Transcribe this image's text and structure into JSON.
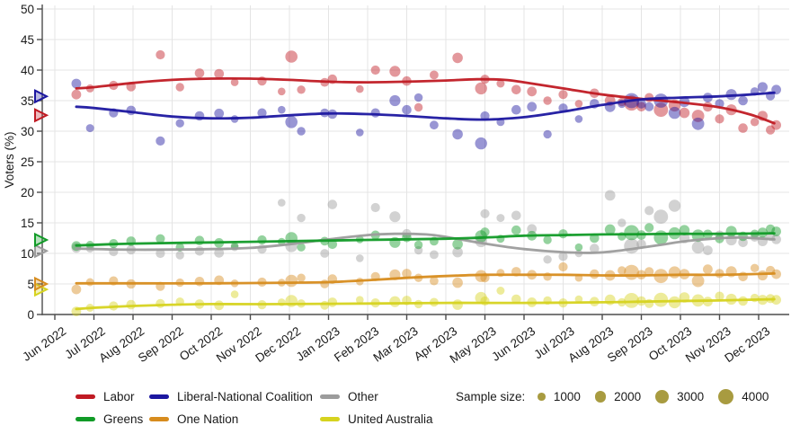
{
  "chart_data": {
    "type": "scatter",
    "title": "",
    "ylabel": "Voters (%)",
    "ylim": [
      0,
      50
    ],
    "yticks": [
      0,
      5,
      10,
      15,
      20,
      25,
      30,
      35,
      40,
      45,
      50
    ],
    "x_tick_labels": [
      "Jun 2022",
      "Jul 2022",
      "Aug 2022",
      "Sep 2022",
      "Oct 2022",
      "Nov 2022",
      "Dec 2022",
      "Jan 2023",
      "Feb 2023",
      "Mar 2023",
      "Apr 2023",
      "May 2023",
      "Jun 2023",
      "Jul 2023",
      "Aug 2023",
      "Sep 2023",
      "Oct 2023",
      "Nov 2023",
      "Dec 2023"
    ],
    "grid": true,
    "legend_position": "bottom",
    "parties": [
      {
        "key": "oth",
        "name": "Other",
        "color": "#9c9c9c",
        "election_2022": 10.4,
        "trend": [
          [
            0.55,
            10.8
          ],
          [
            2,
            10.6
          ],
          [
            4,
            10.7
          ],
          [
            5,
            10.9
          ],
          [
            6,
            11.5
          ],
          [
            7,
            12.3
          ],
          [
            8,
            13.0
          ],
          [
            8.7,
            13.2
          ],
          [
            9.5,
            13.1
          ],
          [
            10,
            12.7
          ],
          [
            11,
            11.6
          ],
          [
            12,
            10.7
          ],
          [
            13,
            10.2
          ],
          [
            13.8,
            10.1
          ],
          [
            14.5,
            10.5
          ],
          [
            15.5,
            11.4
          ],
          [
            16,
            11.9
          ],
          [
            16.8,
            12.4
          ],
          [
            17.5,
            12.6
          ],
          [
            18.4,
            12.3
          ]
        ]
      },
      {
        "key": "uap",
        "name": "United Australia",
        "color": "#d6d31f",
        "election_2022": 4.1,
        "trend": [
          [
            0.55,
            0.9
          ],
          [
            1,
            1.1
          ],
          [
            2,
            1.4
          ],
          [
            3,
            1.6
          ],
          [
            4,
            1.7
          ],
          [
            6,
            1.7
          ],
          [
            8,
            1.8
          ],
          [
            10,
            1.9
          ],
          [
            12,
            1.9
          ],
          [
            14,
            2.0
          ],
          [
            15,
            2.1
          ],
          [
            16,
            2.2
          ],
          [
            17,
            2.3
          ],
          [
            18.4,
            2.5
          ]
        ]
      },
      {
        "key": "onp",
        "name": "One Nation",
        "color": "#d78c1e",
        "election_2022": 5.0,
        "trend": [
          [
            0.55,
            5.1
          ],
          [
            2,
            5.1
          ],
          [
            4,
            5.1
          ],
          [
            6,
            5.2
          ],
          [
            7,
            5.3
          ],
          [
            8,
            5.6
          ],
          [
            9,
            6.0
          ],
          [
            10,
            6.3
          ],
          [
            11,
            6.5
          ],
          [
            12,
            6.5
          ],
          [
            13,
            6.5
          ],
          [
            14,
            6.4
          ],
          [
            15,
            6.4
          ],
          [
            16,
            6.5
          ],
          [
            17,
            6.5
          ],
          [
            18.4,
            6.7
          ]
        ]
      },
      {
        "key": "grn",
        "name": "Greens",
        "color": "#119b27",
        "election_2022": 12.2,
        "trend": [
          [
            0.55,
            11.3
          ],
          [
            2,
            11.6
          ],
          [
            4,
            11.8
          ],
          [
            6,
            12.0
          ],
          [
            8,
            12.2
          ],
          [
            10,
            12.4
          ],
          [
            11,
            12.6
          ],
          [
            12,
            12.9
          ],
          [
            13,
            13.0
          ],
          [
            14,
            13.1
          ],
          [
            15,
            13.15
          ],
          [
            16,
            13.2
          ],
          [
            17,
            13.2
          ],
          [
            18.4,
            13.3
          ]
        ]
      },
      {
        "key": "alp",
        "name": "Labor",
        "color": "#c01a23",
        "election_2022": 32.6,
        "trend": [
          [
            0.55,
            37.0
          ],
          [
            1,
            37.2
          ],
          [
            2,
            37.9
          ],
          [
            3,
            38.4
          ],
          [
            4,
            38.6
          ],
          [
            5,
            38.6
          ],
          [
            6,
            38.4
          ],
          [
            7,
            38.1
          ],
          [
            8,
            38.0
          ],
          [
            9,
            38.1
          ],
          [
            10,
            38.3
          ],
          [
            10.8,
            38.5
          ],
          [
            11.5,
            38.4
          ],
          [
            12,
            38.0
          ],
          [
            13,
            37.0
          ],
          [
            14,
            36.0
          ],
          [
            15,
            35.3
          ],
          [
            16,
            34.7
          ],
          [
            17,
            33.9
          ],
          [
            17.8,
            32.7
          ],
          [
            18.4,
            31.3
          ]
        ]
      },
      {
        "key": "lnc",
        "name": "Liberal-National Coalition",
        "color": "#1c17a0",
        "election_2022": 35.7,
        "trend": [
          [
            0.55,
            34.0
          ],
          [
            1,
            33.8
          ],
          [
            2,
            33.1
          ],
          [
            3,
            32.4
          ],
          [
            4,
            32.1
          ],
          [
            5,
            32.2
          ],
          [
            6,
            32.6
          ],
          [
            7,
            32.9
          ],
          [
            8,
            32.8
          ],
          [
            9,
            32.5
          ],
          [
            10,
            32.1
          ],
          [
            11,
            31.9
          ],
          [
            12,
            32.3
          ],
          [
            13,
            33.2
          ],
          [
            14,
            34.3
          ],
          [
            15,
            35.2
          ],
          [
            16,
            35.5
          ],
          [
            17,
            35.7
          ],
          [
            18,
            36.1
          ],
          [
            18.4,
            36.3
          ]
        ]
      }
    ],
    "polls_columns": [
      "month_index",
      "sample_size",
      "Other",
      "United Australia",
      "One Nation",
      "Greens",
      "Labor",
      "Liberal-National Coalition"
    ],
    "polls": [
      [
        0.55,
        1600,
        10.9,
        0.5,
        4.1,
        11.2,
        36.0,
        37.8
      ],
      [
        0.9,
        1100,
        10.8,
        1.1,
        5.3,
        11.4,
        37.0,
        30.5
      ],
      [
        1.5,
        1400,
        10.3,
        1.4,
        5.5,
        11.6,
        37.5,
        33.0
      ],
      [
        1.95,
        1500,
        10.6,
        1.6,
        5.0,
        12.0,
        37.3,
        33.4
      ],
      [
        2.7,
        1400,
        10.0,
        1.8,
        4.6,
        12.4,
        42.5,
        28.4
      ],
      [
        3.2,
        1200,
        9.7,
        2.1,
        5.2,
        11.0,
        37.2,
        31.3
      ],
      [
        3.7,
        1500,
        10.4,
        1.7,
        5.4,
        12.1,
        39.5,
        32.5
      ],
      [
        4.2,
        1600,
        10.1,
        1.5,
        5.6,
        11.7,
        39.4,
        32.9
      ],
      [
        4.6,
        1000,
        11.0,
        3.3,
        5.1,
        11.2,
        38.0,
        32.0
      ],
      [
        5.3,
        1400,
        10.7,
        1.6,
        5.3,
        12.2,
        38.2,
        33.0
      ],
      [
        5.8,
        1000,
        18.3,
        2.0,
        5.2,
        11.9,
        36.5,
        33.5
      ],
      [
        6.05,
        2500,
        11.2,
        2.2,
        5.5,
        12.5,
        42.2,
        31.5
      ],
      [
        6.3,
        1200,
        15.8,
        1.8,
        6.0,
        11.0,
        36.8,
        30.0
      ],
      [
        6.9,
        1300,
        10.0,
        1.5,
        5.0,
        12.0,
        38.0,
        33.0
      ],
      [
        7.1,
        1500,
        18.0,
        2.0,
        5.8,
        11.5,
        38.5,
        32.8
      ],
      [
        7.8,
        1000,
        9.2,
        2.4,
        5.4,
        12.3,
        36.9,
        29.8
      ],
      [
        8.2,
        1400,
        17.5,
        1.9,
        6.2,
        13.0,
        40.0,
        33.0
      ],
      [
        8.7,
        2000,
        16.0,
        2.1,
        6.5,
        11.8,
        39.8,
        35.0
      ],
      [
        9.0,
        1500,
        13.2,
        2.3,
        6.7,
        12.6,
        38.2,
        33.5
      ],
      [
        9.3,
        1200,
        10.5,
        1.7,
        6.0,
        11.4,
        33.9,
        35.5
      ],
      [
        9.7,
        1300,
        9.8,
        2.0,
        5.5,
        12.0,
        39.2,
        31.0
      ],
      [
        10.3,
        1800,
        10.2,
        1.6,
        5.2,
        11.5,
        42.0,
        29.5
      ],
      [
        10.9,
        2400,
        12.0,
        2.7,
        6.3,
        12.8,
        37.0,
        28.0
      ],
      [
        11.0,
        1400,
        16.5,
        2.2,
        6.0,
        13.5,
        38.5,
        32.5
      ],
      [
        11.4,
        1100,
        15.8,
        3.9,
        6.8,
        12.4,
        37.8,
        31.5
      ],
      [
        11.8,
        1500,
        16.2,
        2.5,
        7.0,
        13.8,
        36.8,
        33.5
      ],
      [
        12.2,
        1600,
        14.0,
        2.0,
        6.5,
        12.9,
        36.5,
        34.0
      ],
      [
        12.6,
        1200,
        9.0,
        2.3,
        6.2,
        12.2,
        35.0,
        29.5
      ],
      [
        13.0,
        1400,
        9.5,
        1.9,
        7.8,
        13.2,
        36.0,
        33.8
      ],
      [
        13.4,
        1000,
        10.0,
        2.5,
        6.0,
        11.0,
        34.5,
        32.0
      ],
      [
        13.8,
        1500,
        10.8,
        2.1,
        6.6,
        12.5,
        36.2,
        34.5
      ],
      [
        14.2,
        1900,
        19.5,
        2.4,
        6.4,
        13.9,
        35.0,
        34.0
      ],
      [
        14.5,
        1200,
        15.0,
        2.0,
        7.2,
        12.8,
        34.8,
        34.5
      ],
      [
        14.75,
        3800,
        11.2,
        2.3,
        6.9,
        13.4,
        34.6,
        35.0
      ],
      [
        15.0,
        1500,
        11.5,
        2.2,
        6.5,
        13.0,
        34.0,
        34.5
      ],
      [
        15.2,
        1400,
        17.0,
        1.8,
        7.0,
        14.2,
        35.5,
        34.0
      ],
      [
        15.5,
        3400,
        16.0,
        2.4,
        6.3,
        12.6,
        33.5,
        35.0
      ],
      [
        15.85,
        2400,
        17.8,
        2.0,
        6.9,
        13.3,
        34.2,
        33.0
      ],
      [
        16.1,
        1800,
        12.5,
        2.8,
        6.6,
        13.8,
        33.0,
        34.8
      ],
      [
        16.45,
        2600,
        11.0,
        2.3,
        5.5,
        12.9,
        32.5,
        31.2
      ],
      [
        16.7,
        1600,
        10.5,
        2.1,
        7.4,
        13.1,
        34.0,
        35.5
      ],
      [
        17.0,
        1400,
        13.0,
        3.0,
        6.7,
        12.4,
        32.0,
        34.5
      ],
      [
        17.3,
        2000,
        12.2,
        2.5,
        7.0,
        13.6,
        33.5,
        36.0
      ],
      [
        17.6,
        1500,
        11.8,
        2.2,
        6.2,
        12.8,
        30.5,
        35.0
      ],
      [
        17.9,
        1200,
        12.6,
        2.7,
        7.6,
        13.2,
        31.5,
        36.5
      ],
      [
        18.1,
        1700,
        12.0,
        2.4,
        6.4,
        13.4,
        32.5,
        37.2
      ],
      [
        18.3,
        1400,
        12.8,
        2.6,
        7.2,
        14.0,
        30.2,
        35.8
      ],
      [
        18.45,
        1600,
        12.3,
        2.4,
        6.6,
        13.6,
        31.0,
        36.8
      ]
    ],
    "legend_rows": [
      {
        "items": [
          {
            "label": "Labor",
            "color": "#c01a23"
          },
          {
            "label": "Liberal-National Coalition",
            "color": "#1c17a0"
          },
          {
            "label": "Other",
            "color": "#9c9c9c"
          }
        ]
      },
      {
        "items": [
          {
            "label": "Greens",
            "color": "#119b27"
          },
          {
            "label": "One Nation",
            "color": "#d78c1e"
          },
          {
            "label": "United Australia",
            "color": "#d6d31f"
          }
        ]
      }
    ],
    "sample_size_legend": {
      "label": "Sample size:",
      "dot_color": "#a89b40",
      "entries": [
        {
          "n": 1000
        },
        {
          "n": 2000
        },
        {
          "n": 3000
        },
        {
          "n": 4000
        }
      ]
    }
  }
}
